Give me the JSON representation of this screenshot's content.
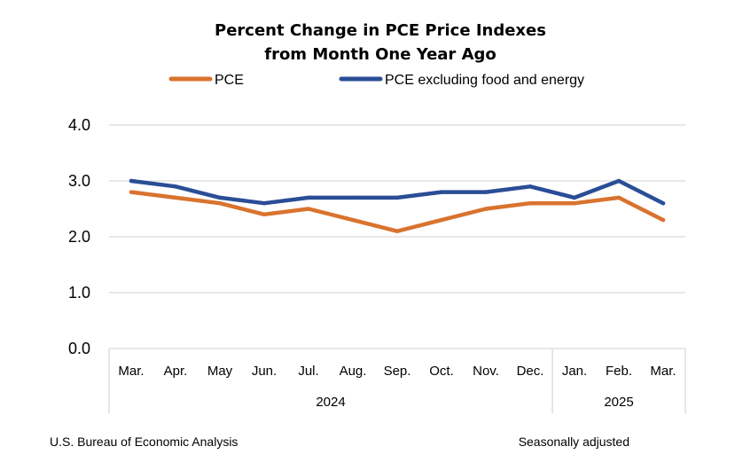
{
  "chart_data": {
    "type": "line",
    "title_lines": [
      "Percent Change in PCE Price Indexes",
      "from Month One Year Ago"
    ],
    "categories": [
      "Mar.",
      "Apr.",
      "May",
      "Jun.",
      "Jul.",
      "Aug.",
      "Sep.",
      "Oct.",
      "Nov.",
      "Dec.",
      "Jan.",
      "Feb.",
      "Mar."
    ],
    "year_groups": [
      {
        "label": "2024",
        "start": 0,
        "end": 9
      },
      {
        "label": "2025",
        "start": 10,
        "end": 12
      }
    ],
    "series": [
      {
        "name": "PCE",
        "color": "#D9732E",
        "values": [
          2.8,
          2.7,
          2.6,
          2.4,
          2.5,
          2.3,
          2.1,
          2.3,
          2.5,
          2.6,
          2.6,
          2.7,
          2.3
        ]
      },
      {
        "name": "PCE excluding food and energy",
        "color": "#2A4E96",
        "values": [
          3.0,
          2.9,
          2.7,
          2.6,
          2.7,
          2.7,
          2.7,
          2.8,
          2.8,
          2.9,
          2.7,
          3.0,
          2.6
        ]
      }
    ],
    "yticks": [
      "4.0",
      "3.0",
      "2.0",
      "1.0",
      "0.0"
    ],
    "ylim": [
      0,
      4
    ],
    "grid": true,
    "xlabel": "",
    "ylabel": ""
  },
  "footer": {
    "source": "U.S. Bureau of Economic Analysis",
    "note": "Seasonally adjusted"
  }
}
